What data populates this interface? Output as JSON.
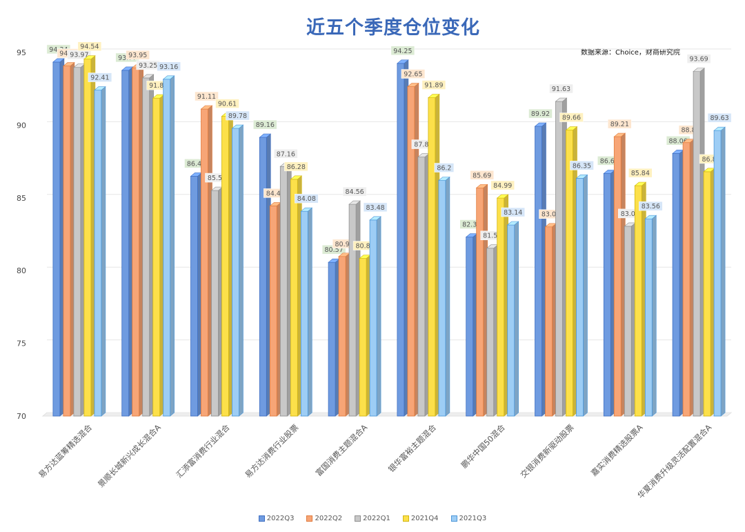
{
  "chart_data": {
    "type": "bar",
    "title": "近五个季度仓位变化",
    "subtitle": "数据来源：Choice，财商研究院",
    "xlabel": "",
    "ylabel": "",
    "ylim": [
      70,
      95
    ],
    "yticks": [
      70,
      75,
      80,
      85,
      90,
      95
    ],
    "grid": true,
    "legend_position": "bottom",
    "categories": [
      "易方达蓝筹精选混合",
      "景顺长城新兴成长混合A",
      "汇添富消费行业混合",
      "易方达消费行业股票",
      "富国消费主题混合A",
      "银华富裕主题混合",
      "鹏华中国50混合",
      "交银消费新驱动股票",
      "嘉实消费精选股票A",
      "华夏消费升级灵活配置混合A"
    ],
    "series": [
      {
        "name": "2022Q3",
        "color": "#6f9be0",
        "values": [
          94.34,
          93.77,
          86.49,
          89.16,
          80.57,
          94.25,
          82.31,
          89.92,
          86.68,
          88.06
        ]
      },
      {
        "name": "2022Q2",
        "color": "#f7a576",
        "values": [
          94.07,
          93.95,
          91.11,
          84.45,
          80.97,
          92.65,
          85.69,
          83.01,
          89.21,
          88.8
        ]
      },
      {
        "name": "2022Q1",
        "color": "#c8c8c8",
        "values": [
          93.97,
          93.25,
          85.51,
          87.16,
          84.56,
          87.81,
          81.54,
          91.63,
          83.05,
          93.69
        ]
      },
      {
        "name": "2021Q4",
        "color": "#fce04a",
        "values": [
          94.54,
          91.86,
          90.61,
          86.28,
          80.84,
          91.89,
          84.99,
          89.66,
          85.84,
          86.8
        ]
      },
      {
        "name": "2021Q3",
        "color": "#9dcdf5",
        "values": [
          92.41,
          93.16,
          89.78,
          84.08,
          83.48,
          86.2,
          83.14,
          86.35,
          83.56,
          89.63
        ]
      }
    ]
  }
}
